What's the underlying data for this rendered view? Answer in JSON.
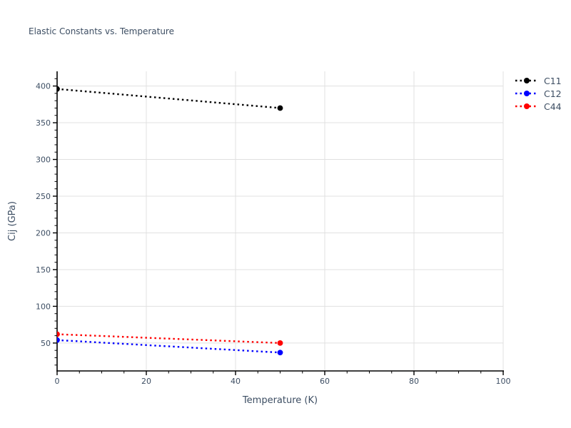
{
  "chart_data": {
    "type": "line",
    "title": "Elastic Constants vs. Temperature",
    "xlabel": "Temperature (K)",
    "ylabel": "Cij (GPa)",
    "xlim": [
      0,
      100
    ],
    "ylim": [
      12,
      420
    ],
    "x_ticks": [
      0,
      20,
      40,
      60,
      80,
      100
    ],
    "y_ticks": [
      50,
      100,
      150,
      200,
      250,
      300,
      350,
      400
    ],
    "x_minor_step": 5,
    "y_minor_step": 10,
    "grid": true,
    "line_style": "dotted",
    "marker": "circle",
    "legend_position": "outside-right",
    "series": [
      {
        "name": "C11",
        "color": "#000000",
        "x": [
          0,
          50
        ],
        "y": [
          396,
          370
        ]
      },
      {
        "name": "C12",
        "color": "#0000ff",
        "x": [
          0,
          50
        ],
        "y": [
          54,
          37
        ]
      },
      {
        "name": "C44",
        "color": "#ff0000",
        "x": [
          0,
          50
        ],
        "y": [
          62,
          50
        ]
      }
    ],
    "colors": {
      "text": "#3d4e63",
      "axis": "#000000",
      "grid": "#e0e0e0",
      "background": "#ffffff"
    }
  }
}
